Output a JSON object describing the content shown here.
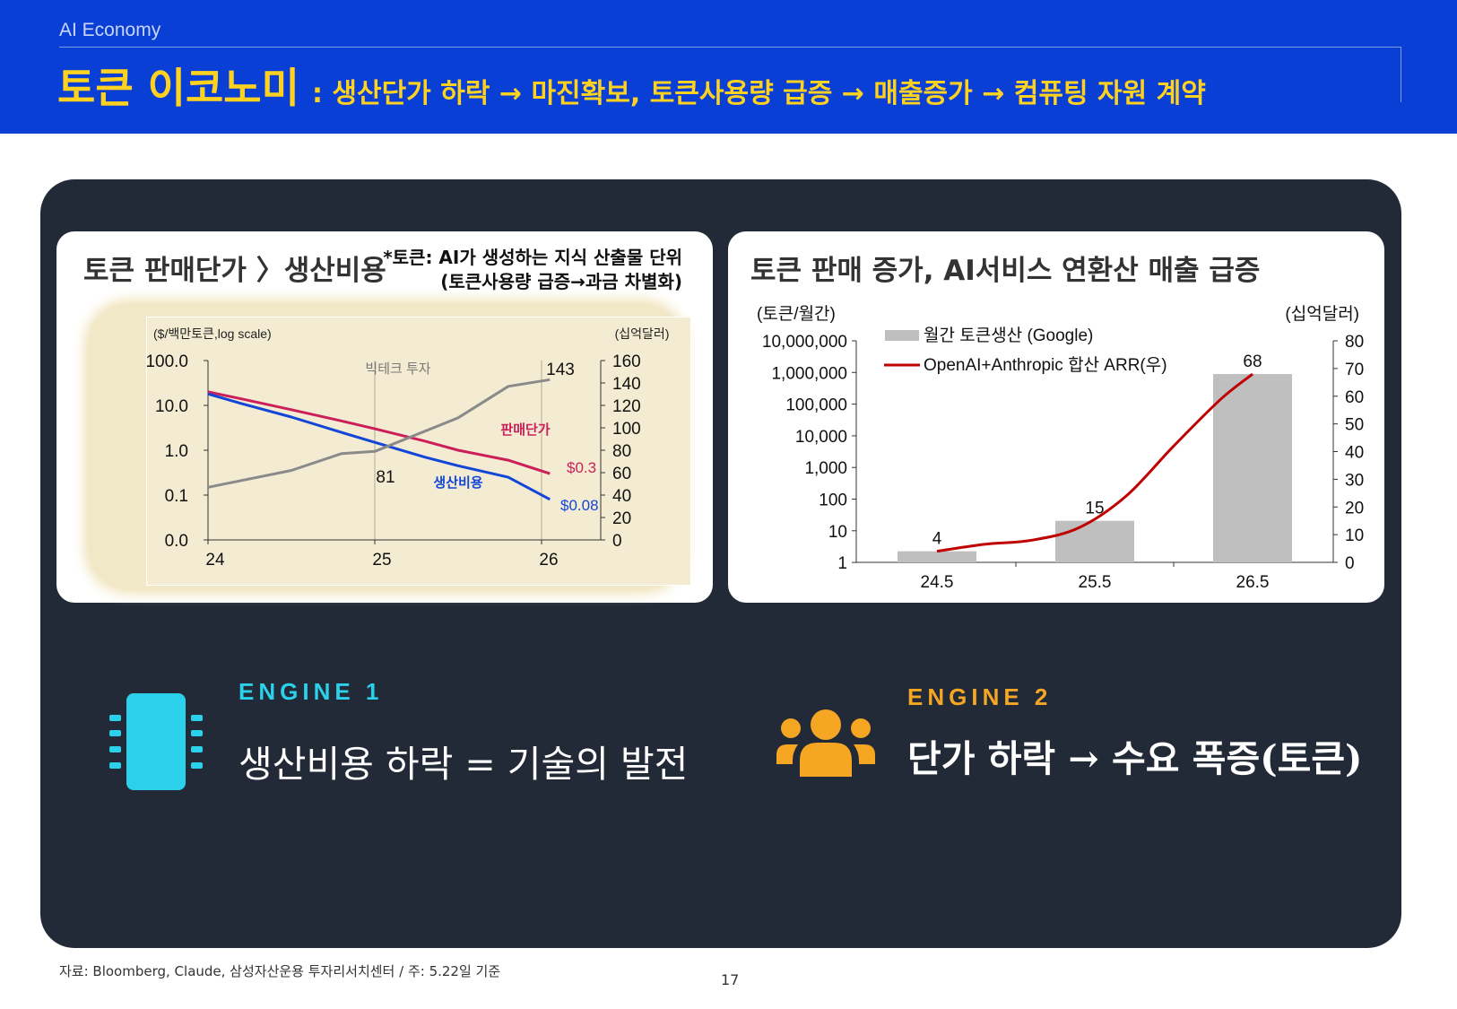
{
  "header": {
    "section": "AI Economy",
    "title_main": "토큰 이코노미",
    "title_sub": ": 생산단가 하락 → 마진확보, 토큰사용량 급증 → 매출증가 → 컴퓨팅 자원 계약"
  },
  "colors": {
    "header_bg": "#0a3fd6",
    "title_yellow": "#ffd21f",
    "panel_bg": "#222a37",
    "engine1": "#2bd1ea",
    "engine2": "#f5a623",
    "price_line": "#cc1f5a",
    "cost_line": "#1346d8",
    "invest_line": "#8a8a8a",
    "bar_gray": "#bfbfbf",
    "arr_line": "#c00000"
  },
  "chart1": {
    "title": "토큰 판매단가 〉생산비용",
    "note_line1": "*토큰: AI가 생성하는 지식 산출물 단위",
    "note_line2": "(토큰사용량 급증→과금 차별화)",
    "left_unit": "($/백만토큰,log scale)",
    "right_unit": "(십억달러)",
    "left_ticks": [
      "100.0",
      "10.0",
      "1.0",
      "0.1",
      "0.0"
    ],
    "right_ticks": [
      "160",
      "140",
      "120",
      "100",
      "80",
      "60",
      "40",
      "20",
      "0"
    ],
    "x_ticks": [
      "24",
      "25",
      "26"
    ],
    "label_invest": "빅테크 투자",
    "label_price": "판매단가",
    "label_cost": "생산비용",
    "label_81": "81",
    "label_143": "143",
    "label_price_end": "$0.3",
    "label_cost_end": "$0.08"
  },
  "chart2": {
    "title": "토큰 판매 증가, AI서비스 연환산 매출 급증",
    "left_unit": "(토큰/월간)",
    "right_unit": "(십억달러)",
    "left_ticks": [
      "10,000,000",
      "1,000,000",
      "100,000",
      "10,000",
      "1,000",
      "100",
      "10",
      "1"
    ],
    "right_ticks": [
      "80",
      "70",
      "60",
      "50",
      "40",
      "30",
      "20",
      "10",
      "0"
    ],
    "x_ticks": [
      "24.5",
      "25.5",
      "26.5"
    ],
    "legend_bar": "월간 토큰생산 (Google)",
    "legend_line": "OpenAI+Anthropic 합산 ARR(우)",
    "bar_labels": [
      "4",
      "15",
      "68"
    ]
  },
  "chart_data": [
    {
      "type": "line",
      "title": "토큰 판매단가 〉생산비용",
      "x_ticks": [
        "24",
        "25",
        "26"
      ],
      "xlim": [
        24,
        26.2
      ],
      "y_left": {
        "label": "($/백만토큰,log scale)",
        "scale": "log",
        "range": [
          0.01,
          100
        ]
      },
      "y_right": {
        "label": "(십억달러)",
        "range": [
          0,
          160
        ]
      },
      "series": [
        {
          "name": "판매단가",
          "axis": "left",
          "x": [
            24.0,
            24.2,
            24.5,
            24.8,
            25.0,
            25.3,
            25.5,
            25.8,
            26.05
          ],
          "values": [
            20,
            14,
            8,
            4.5,
            3,
            1.6,
            1.0,
            0.6,
            0.3
          ]
        },
        {
          "name": "생산비용",
          "axis": "left",
          "x": [
            24.0,
            24.2,
            24.5,
            24.8,
            25.0,
            25.3,
            25.5,
            25.8,
            26.05
          ],
          "values": [
            18,
            11,
            5.5,
            2.5,
            1.5,
            0.7,
            0.45,
            0.25,
            0.08
          ]
        },
        {
          "name": "빅테크 투자",
          "axis": "right",
          "x": [
            24.0,
            24.5,
            24.8,
            25.0,
            25.5,
            25.8,
            26.05
          ],
          "values": [
            47,
            62,
            77,
            79,
            109,
            137,
            143
          ]
        }
      ],
      "annotations": [
        "81",
        "143",
        "$0.3",
        "$0.08"
      ]
    },
    {
      "type": "bar",
      "title": "토큰 판매 증가, AI서비스 연환산 매출 급증",
      "categories": [
        "24.5",
        "25.5",
        "26.5"
      ],
      "y_left": {
        "label": "(토큰/월간)",
        "scale": "log",
        "range": [
          1,
          10000000
        ]
      },
      "y_right": {
        "label": "(십억달러)",
        "range": [
          0,
          80
        ]
      },
      "series": [
        {
          "name": "월간 토큰생산 (Google)",
          "kind": "bar",
          "axis": "right",
          "values": [
            4,
            15,
            68
          ]
        },
        {
          "name": "OpenAI+Anthropic 합산 ARR(우)",
          "kind": "line",
          "axis": "right",
          "x": [
            24.5,
            24.8,
            25.1,
            25.4,
            25.7,
            26.0,
            26.3,
            26.5
          ],
          "values": [
            4,
            6.5,
            8,
            12.5,
            24,
            42,
            59,
            68
          ]
        }
      ],
      "legend": "top-left"
    }
  ],
  "engines": {
    "e1_label": "ENGINE 1",
    "e1_text": "생산비용 하락 = 기술의 발전",
    "e1_icon": "chip-icon",
    "e2_label": "ENGINE 2",
    "e2_text": "단가 하락 → 수요 폭증(토큰)",
    "e2_icon": "people-icon"
  },
  "footer": {
    "source": "자료: Bloomberg, Claude, 삼성자산운용 투자리서치센터 / 주: 5.22일 기준",
    "page": "17"
  }
}
